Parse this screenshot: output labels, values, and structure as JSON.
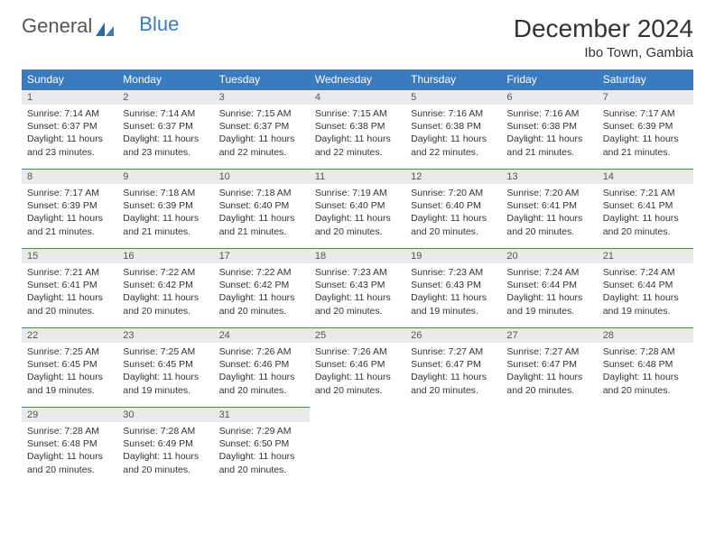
{
  "logo": {
    "text1": "General",
    "text2": "Blue"
  },
  "title": "December 2024",
  "location": "Ibo Town, Gambia",
  "day_headers": [
    "Sunday",
    "Monday",
    "Tuesday",
    "Wednesday",
    "Thursday",
    "Friday",
    "Saturday"
  ],
  "colors": {
    "header_bg": "#3a7bbf",
    "header_fg": "#ffffff",
    "daynum_bg": "#eaeaea",
    "border": "#3a7bbf"
  },
  "days": [
    {
      "n": 1,
      "sunrise": "7:14 AM",
      "sunset": "6:37 PM",
      "day_h": 11,
      "day_m": 23
    },
    {
      "n": 2,
      "sunrise": "7:14 AM",
      "sunset": "6:37 PM",
      "day_h": 11,
      "day_m": 23
    },
    {
      "n": 3,
      "sunrise": "7:15 AM",
      "sunset": "6:37 PM",
      "day_h": 11,
      "day_m": 22
    },
    {
      "n": 4,
      "sunrise": "7:15 AM",
      "sunset": "6:38 PM",
      "day_h": 11,
      "day_m": 22
    },
    {
      "n": 5,
      "sunrise": "7:16 AM",
      "sunset": "6:38 PM",
      "day_h": 11,
      "day_m": 22
    },
    {
      "n": 6,
      "sunrise": "7:16 AM",
      "sunset": "6:38 PM",
      "day_h": 11,
      "day_m": 21
    },
    {
      "n": 7,
      "sunrise": "7:17 AM",
      "sunset": "6:39 PM",
      "day_h": 11,
      "day_m": 21
    },
    {
      "n": 8,
      "sunrise": "7:17 AM",
      "sunset": "6:39 PM",
      "day_h": 11,
      "day_m": 21
    },
    {
      "n": 9,
      "sunrise": "7:18 AM",
      "sunset": "6:39 PM",
      "day_h": 11,
      "day_m": 21
    },
    {
      "n": 10,
      "sunrise": "7:18 AM",
      "sunset": "6:40 PM",
      "day_h": 11,
      "day_m": 21
    },
    {
      "n": 11,
      "sunrise": "7:19 AM",
      "sunset": "6:40 PM",
      "day_h": 11,
      "day_m": 20
    },
    {
      "n": 12,
      "sunrise": "7:20 AM",
      "sunset": "6:40 PM",
      "day_h": 11,
      "day_m": 20
    },
    {
      "n": 13,
      "sunrise": "7:20 AM",
      "sunset": "6:41 PM",
      "day_h": 11,
      "day_m": 20
    },
    {
      "n": 14,
      "sunrise": "7:21 AM",
      "sunset": "6:41 PM",
      "day_h": 11,
      "day_m": 20
    },
    {
      "n": 15,
      "sunrise": "7:21 AM",
      "sunset": "6:41 PM",
      "day_h": 11,
      "day_m": 20
    },
    {
      "n": 16,
      "sunrise": "7:22 AM",
      "sunset": "6:42 PM",
      "day_h": 11,
      "day_m": 20
    },
    {
      "n": 17,
      "sunrise": "7:22 AM",
      "sunset": "6:42 PM",
      "day_h": 11,
      "day_m": 20
    },
    {
      "n": 18,
      "sunrise": "7:23 AM",
      "sunset": "6:43 PM",
      "day_h": 11,
      "day_m": 20
    },
    {
      "n": 19,
      "sunrise": "7:23 AM",
      "sunset": "6:43 PM",
      "day_h": 11,
      "day_m": 19
    },
    {
      "n": 20,
      "sunrise": "7:24 AM",
      "sunset": "6:44 PM",
      "day_h": 11,
      "day_m": 19
    },
    {
      "n": 21,
      "sunrise": "7:24 AM",
      "sunset": "6:44 PM",
      "day_h": 11,
      "day_m": 19
    },
    {
      "n": 22,
      "sunrise": "7:25 AM",
      "sunset": "6:45 PM",
      "day_h": 11,
      "day_m": 19
    },
    {
      "n": 23,
      "sunrise": "7:25 AM",
      "sunset": "6:45 PM",
      "day_h": 11,
      "day_m": 19
    },
    {
      "n": 24,
      "sunrise": "7:26 AM",
      "sunset": "6:46 PM",
      "day_h": 11,
      "day_m": 20
    },
    {
      "n": 25,
      "sunrise": "7:26 AM",
      "sunset": "6:46 PM",
      "day_h": 11,
      "day_m": 20
    },
    {
      "n": 26,
      "sunrise": "7:27 AM",
      "sunset": "6:47 PM",
      "day_h": 11,
      "day_m": 20
    },
    {
      "n": 27,
      "sunrise": "7:27 AM",
      "sunset": "6:47 PM",
      "day_h": 11,
      "day_m": 20
    },
    {
      "n": 28,
      "sunrise": "7:28 AM",
      "sunset": "6:48 PM",
      "day_h": 11,
      "day_m": 20
    },
    {
      "n": 29,
      "sunrise": "7:28 AM",
      "sunset": "6:48 PM",
      "day_h": 11,
      "day_m": 20
    },
    {
      "n": 30,
      "sunrise": "7:28 AM",
      "sunset": "6:49 PM",
      "day_h": 11,
      "day_m": 20
    },
    {
      "n": 31,
      "sunrise": "7:29 AM",
      "sunset": "6:50 PM",
      "day_h": 11,
      "day_m": 20
    }
  ],
  "labels": {
    "sunrise": "Sunrise:",
    "sunset": "Sunset:",
    "daylight": "Daylight:",
    "hours": "hours",
    "and": "and",
    "minutes": "minutes."
  }
}
